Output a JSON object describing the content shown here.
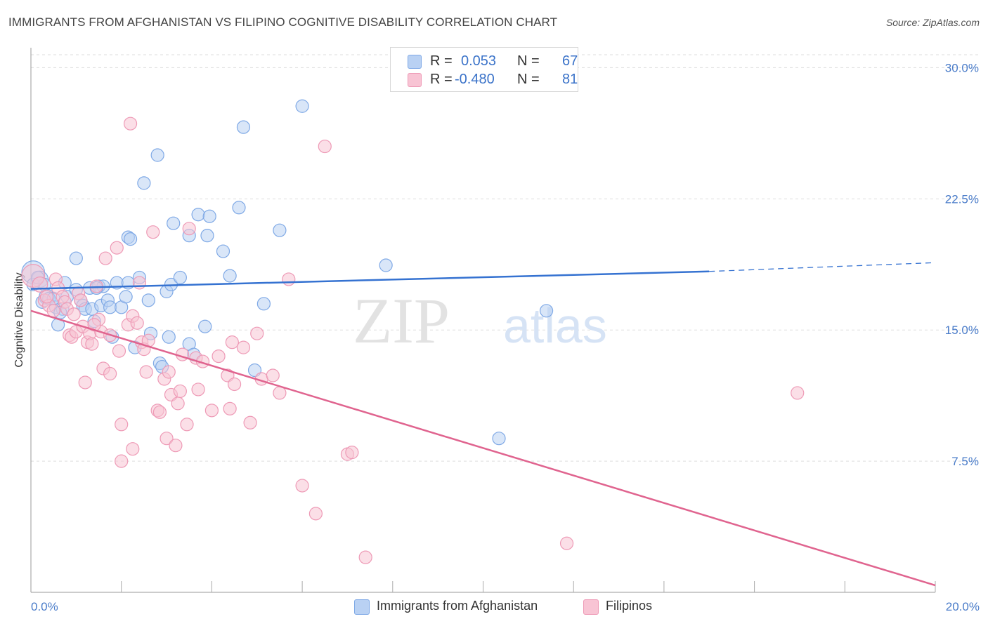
{
  "header": {
    "title": "IMMIGRANTS FROM AFGHANISTAN VS FILIPINO COGNITIVE DISABILITY CORRELATION CHART",
    "source": "Source: ZipAtlas.com"
  },
  "watermark": {
    "zip": "ZIP",
    "atlas": "atlas"
  },
  "legend": {
    "r_label": "R =",
    "n_label": "N =",
    "series": [
      {
        "name": "Immigrants from Afghanistan",
        "r": "0.053",
        "n": "67",
        "color": "#7fa9e6"
      },
      {
        "name": "Filipinos",
        "r": "-0.480",
        "n": "81",
        "color": "#f1a1bb"
      }
    ]
  },
  "colors": {
    "blue_fill": "#b9d1f3",
    "blue_stroke": "#7fa9e6",
    "blue_line": "#3572d1",
    "pink_fill": "#f8c4d4",
    "pink_stroke": "#ee9ab6",
    "pink_line": "#e0648f",
    "grid": "#dddddd",
    "tick_text": "#4a7cc9"
  },
  "chart_data": {
    "type": "scatter",
    "title": "IMMIGRANTS FROM AFGHANISTAN VS FILIPINO COGNITIVE DISABILITY CORRELATION CHART",
    "xlabel": "",
    "ylabel": "Cognitive Disability",
    "xlim": [
      0,
      20
    ],
    "ylim": [
      0,
      30.9
    ],
    "x_ticks": [
      "0.0%",
      "20.0%"
    ],
    "y_ticks": [
      "7.5%",
      "15.0%",
      "22.5%",
      "30.0%"
    ],
    "y_tick_values": [
      7.5,
      15.0,
      22.5,
      30.0
    ],
    "grid": "horizontal dashed",
    "legend_position": "top-center",
    "series": [
      {
        "name": "Immigrants from Afghanistan",
        "r": 0.053,
        "n": 67,
        "trend": {
          "x0": 0.0,
          "y0": 17.35,
          "x1": 15.0,
          "y1": 18.35,
          "dashed_to_x": 20.0,
          "dashed_to_y": 18.85
        },
        "points": [
          [
            0.05,
            18.3,
            1.8
          ],
          [
            0.2,
            17.9,
            1.3
          ],
          [
            0.25,
            16.6,
            1.0
          ],
          [
            0.3,
            17.6,
            1.0
          ],
          [
            0.35,
            16.9,
            1.2
          ],
          [
            0.4,
            16.8,
            1.0
          ],
          [
            0.55,
            16.3,
            1.0
          ],
          [
            0.6,
            15.3,
            1.0
          ],
          [
            0.7,
            16.2,
            1.0
          ],
          [
            0.75,
            17.7,
            1.0
          ],
          [
            0.8,
            16.9,
            1.0
          ],
          [
            1.0,
            17.3,
            1.0
          ],
          [
            1.0,
            19.1,
            1.0
          ],
          [
            1.1,
            16.7,
            1.0
          ],
          [
            1.15,
            16.4,
            1.0
          ],
          [
            1.2,
            16.2,
            1.0
          ],
          [
            1.3,
            17.4,
            1.0
          ],
          [
            1.35,
            16.2,
            1.0
          ],
          [
            1.4,
            15.5,
            1.0
          ],
          [
            1.5,
            17.5,
            1.0
          ],
          [
            1.55,
            16.4,
            1.0
          ],
          [
            1.6,
            17.5,
            1.0
          ],
          [
            1.7,
            16.7,
            1.0
          ],
          [
            1.75,
            16.3,
            1.0
          ],
          [
            1.8,
            14.6,
            1.0
          ],
          [
            1.9,
            17.7,
            1.0
          ],
          [
            2.0,
            16.3,
            1.0
          ],
          [
            2.1,
            16.9,
            1.0
          ],
          [
            2.15,
            17.7,
            1.0
          ],
          [
            2.15,
            20.3,
            1.0
          ],
          [
            2.2,
            20.2,
            1.0
          ],
          [
            2.3,
            14.0,
            1.0
          ],
          [
            2.4,
            18.0,
            1.0
          ],
          [
            2.5,
            23.4,
            1.0
          ],
          [
            2.6,
            16.7,
            1.0
          ],
          [
            2.65,
            14.8,
            1.0
          ],
          [
            2.8,
            25.0,
            1.0
          ],
          [
            2.85,
            13.1,
            1.0
          ],
          [
            2.9,
            12.9,
            1.0
          ],
          [
            3.0,
            17.2,
            1.0
          ],
          [
            3.05,
            14.6,
            1.0
          ],
          [
            3.1,
            17.6,
            1.0
          ],
          [
            3.15,
            21.1,
            1.0
          ],
          [
            3.3,
            18.0,
            1.0
          ],
          [
            3.5,
            20.4,
            1.0
          ],
          [
            3.5,
            14.2,
            1.0
          ],
          [
            3.6,
            13.6,
            1.0
          ],
          [
            3.7,
            21.6,
            1.0
          ],
          [
            3.85,
            15.2,
            1.0
          ],
          [
            3.9,
            20.4,
            1.0
          ],
          [
            3.95,
            21.5,
            1.0
          ],
          [
            4.25,
            19.5,
            1.0
          ],
          [
            4.4,
            18.1,
            1.0
          ],
          [
            4.6,
            22.0,
            1.0
          ],
          [
            4.7,
            26.6,
            1.0
          ],
          [
            4.95,
            12.7,
            1.0
          ],
          [
            5.15,
            16.5,
            1.0
          ],
          [
            5.5,
            20.7,
            1.0
          ],
          [
            6.0,
            27.8,
            1.0
          ],
          [
            7.85,
            18.7,
            1.0
          ],
          [
            10.35,
            8.8,
            1.0
          ],
          [
            11.4,
            16.1,
            1.0
          ],
          [
            0.05,
            17.6,
            1.0
          ],
          [
            0.15,
            18.0,
            1.0
          ],
          [
            0.5,
            16.8,
            1.0
          ],
          [
            0.65,
            16.0,
            1.0
          ],
          [
            1.45,
            17.4,
            1.0
          ]
        ]
      },
      {
        "name": "Filipinos",
        "r": -0.48,
        "n": 81,
        "trend": {
          "x0": 0.0,
          "y0": 16.1,
          "x1": 20.0,
          "y1": 0.4
        },
        "points": [
          [
            0.05,
            18.1,
            1.8
          ],
          [
            0.2,
            17.6,
            1.2
          ],
          [
            0.3,
            16.7,
            1.0
          ],
          [
            0.4,
            16.4,
            1.0
          ],
          [
            0.5,
            16.1,
            1.0
          ],
          [
            0.55,
            17.9,
            1.0
          ],
          [
            0.6,
            17.4,
            1.0
          ],
          [
            0.7,
            16.9,
            1.0
          ],
          [
            0.75,
            16.6,
            1.0
          ],
          [
            0.8,
            16.2,
            1.0
          ],
          [
            0.85,
            14.7,
            1.0
          ],
          [
            0.9,
            14.6,
            1.0
          ],
          [
            0.95,
            15.9,
            1.0
          ],
          [
            1.0,
            14.9,
            1.0
          ],
          [
            1.05,
            17.1,
            1.0
          ],
          [
            1.1,
            16.7,
            1.0
          ],
          [
            1.15,
            15.2,
            1.0
          ],
          [
            1.2,
            12.0,
            1.0
          ],
          [
            1.25,
            14.3,
            1.0
          ],
          [
            1.3,
            14.8,
            1.0
          ],
          [
            1.35,
            14.2,
            1.0
          ],
          [
            1.45,
            17.5,
            1.0
          ],
          [
            1.5,
            15.6,
            1.0
          ],
          [
            1.55,
            14.9,
            1.0
          ],
          [
            1.6,
            12.8,
            1.0
          ],
          [
            1.65,
            19.1,
            1.0
          ],
          [
            1.75,
            14.7,
            1.0
          ],
          [
            1.75,
            12.5,
            1.0
          ],
          [
            1.9,
            19.7,
            1.0
          ],
          [
            1.95,
            13.8,
            1.0
          ],
          [
            2.0,
            9.6,
            1.0
          ],
          [
            2.0,
            7.5,
            1.0
          ],
          [
            2.15,
            15.3,
            1.0
          ],
          [
            2.2,
            26.8,
            1.0
          ],
          [
            2.25,
            8.2,
            1.0
          ],
          [
            2.25,
            15.8,
            1.0
          ],
          [
            2.35,
            15.4,
            1.0
          ],
          [
            2.4,
            17.7,
            1.0
          ],
          [
            2.45,
            14.3,
            1.0
          ],
          [
            2.5,
            13.9,
            1.0
          ],
          [
            2.55,
            12.6,
            1.0
          ],
          [
            2.6,
            14.4,
            1.0
          ],
          [
            2.7,
            20.6,
            1.0
          ],
          [
            2.8,
            10.4,
            1.0
          ],
          [
            2.85,
            10.3,
            1.0
          ],
          [
            2.95,
            12.2,
            1.0
          ],
          [
            3.0,
            8.8,
            1.0
          ],
          [
            3.05,
            12.6,
            1.0
          ],
          [
            3.1,
            11.3,
            1.0
          ],
          [
            3.2,
            8.4,
            1.0
          ],
          [
            3.25,
            10.8,
            1.0
          ],
          [
            3.3,
            11.5,
            1.0
          ],
          [
            3.35,
            13.6,
            1.0
          ],
          [
            3.45,
            9.6,
            1.0
          ],
          [
            3.5,
            20.8,
            1.0
          ],
          [
            3.65,
            13.4,
            1.0
          ],
          [
            3.7,
            11.6,
            1.0
          ],
          [
            3.8,
            13.2,
            1.0
          ],
          [
            4.0,
            10.4,
            1.0
          ],
          [
            4.15,
            13.5,
            1.0
          ],
          [
            4.35,
            12.4,
            1.0
          ],
          [
            4.4,
            10.5,
            1.0
          ],
          [
            4.45,
            14.3,
            1.0
          ],
          [
            4.5,
            11.9,
            1.0
          ],
          [
            4.7,
            14.0,
            1.0
          ],
          [
            4.85,
            9.7,
            1.0
          ],
          [
            5.0,
            14.8,
            1.0
          ],
          [
            5.1,
            12.2,
            1.0
          ],
          [
            5.35,
            12.4,
            1.0
          ],
          [
            5.5,
            11.4,
            1.0
          ],
          [
            5.7,
            17.9,
            1.0
          ],
          [
            6.0,
            6.1,
            1.0
          ],
          [
            6.3,
            4.5,
            1.0
          ],
          [
            6.5,
            25.5,
            1.0
          ],
          [
            7.0,
            7.9,
            1.0
          ],
          [
            7.1,
            8.0,
            1.0
          ],
          [
            7.4,
            2.0,
            1.0
          ],
          [
            11.85,
            2.8,
            1.0
          ],
          [
            16.95,
            11.4,
            1.0
          ],
          [
            0.35,
            16.9,
            1.0
          ],
          [
            1.4,
            15.3,
            1.0
          ]
        ]
      }
    ]
  },
  "axis": {
    "x_min_label": "0.0%",
    "x_max_label": "20.0%",
    "y_labels": [
      "30.0%",
      "22.5%",
      "15.0%",
      "7.5%"
    ]
  },
  "bottom_legend": [
    "Immigrants from Afghanistan",
    "Filipinos"
  ]
}
